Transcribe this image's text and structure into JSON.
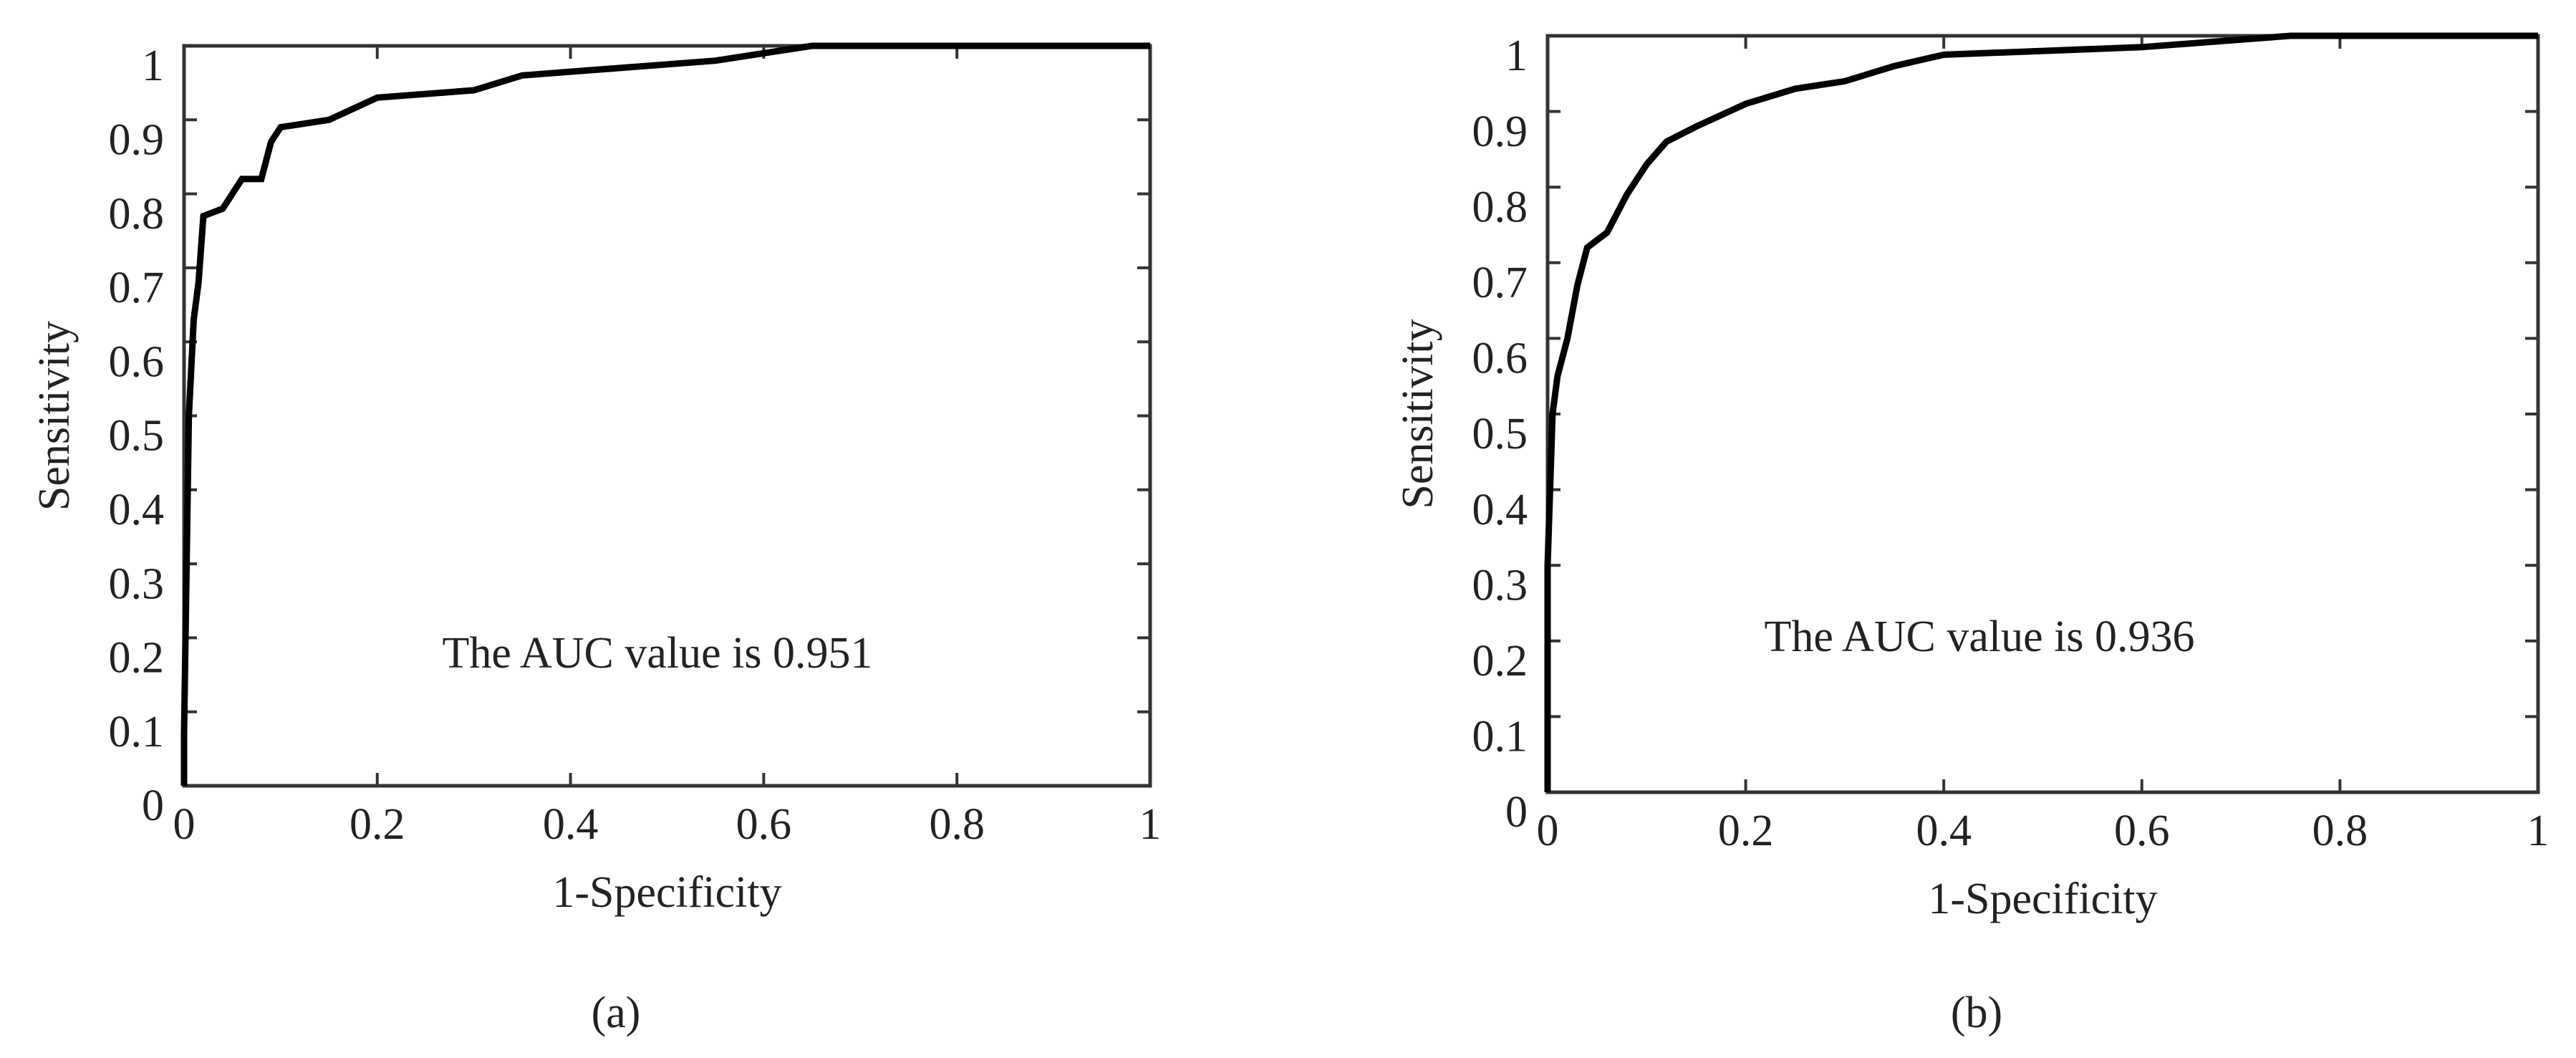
{
  "chart_data": [
    {
      "type": "line",
      "xlabel": "1-Specificity",
      "ylabel": "Sensitivity",
      "annotation": "The AUC value is 0.951",
      "caption": "(a)",
      "color": "#000000",
      "x": [
        0,
        0,
        0.005,
        0.01,
        0.015,
        0.02,
        0.04,
        0.05,
        0.06,
        0.08,
        0.09,
        0.1,
        0.15,
        0.2,
        0.3,
        0.35,
        0.45,
        0.55,
        0.6,
        0.65,
        1
      ],
      "values": [
        0,
        0.07,
        0.5,
        0.63,
        0.68,
        0.77,
        0.78,
        0.8,
        0.82,
        0.82,
        0.87,
        0.89,
        0.9,
        0.93,
        0.94,
        0.96,
        0.97,
        0.98,
        0.99,
        1,
        1
      ],
      "xlim": [
        0,
        1
      ],
      "ylim": [
        0,
        1
      ],
      "xticks": [
        0,
        0.2,
        0.4,
        0.6,
        0.8,
        1
      ],
      "yticks": [
        0,
        0.1,
        0.2,
        0.3,
        0.4,
        0.5,
        0.6,
        0.7,
        0.8,
        0.9,
        1
      ]
    },
    {
      "type": "line",
      "xlabel": "1-Specificity",
      "ylabel": "Sensitivity",
      "annotation": "The AUC value is 0.936",
      "caption": "(b)",
      "color": "#000000",
      "x": [
        0,
        0,
        0.005,
        0.01,
        0.02,
        0.03,
        0.04,
        0.06,
        0.08,
        0.1,
        0.12,
        0.15,
        0.2,
        0.25,
        0.3,
        0.35,
        0.4,
        0.5,
        0.6,
        0.7,
        0.75,
        1
      ],
      "values": [
        0,
        0.3,
        0.5,
        0.55,
        0.6,
        0.67,
        0.72,
        0.74,
        0.79,
        0.83,
        0.86,
        0.88,
        0.91,
        0.93,
        0.94,
        0.96,
        0.975,
        0.98,
        0.985,
        0.995,
        1,
        1
      ],
      "xlim": [
        0,
        1
      ],
      "ylim": [
        0,
        1
      ],
      "xticks": [
        0,
        0.2,
        0.4,
        0.6,
        0.8,
        1
      ],
      "yticks": [
        0,
        0.1,
        0.2,
        0.3,
        0.4,
        0.5,
        0.6,
        0.7,
        0.8,
        0.9,
        1
      ]
    }
  ]
}
